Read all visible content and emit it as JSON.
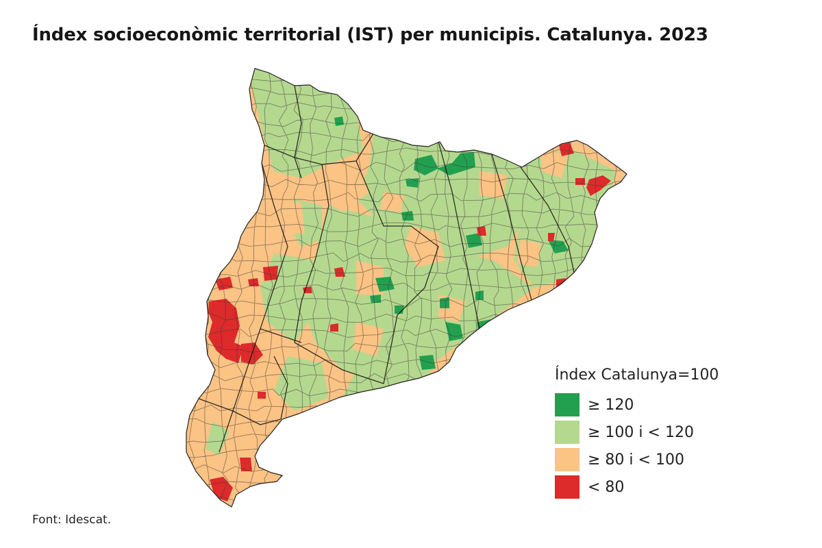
{
  "title": "Índex socioeconòmic territorial (IST) per municipis. Catalunya. 2023",
  "legend": {
    "title": "Índex Catalunya=100",
    "items": [
      {
        "label": "≥ 120",
        "color": "#22a050",
        "class": "ge120"
      },
      {
        "label": "≥ 100 i < 120",
        "color": "#b5d88f",
        "class": "100to120"
      },
      {
        "label": "≥ 80 i < 100",
        "color": "#fbc384",
        "class": "80to100"
      },
      {
        "label": "< 80",
        "color": "#dd2a2a",
        "class": "lt80"
      }
    ]
  },
  "source": "Font: Idescat.",
  "map": {
    "region": "Catalunya",
    "units": "municipis",
    "border_color": "#333333"
  }
}
